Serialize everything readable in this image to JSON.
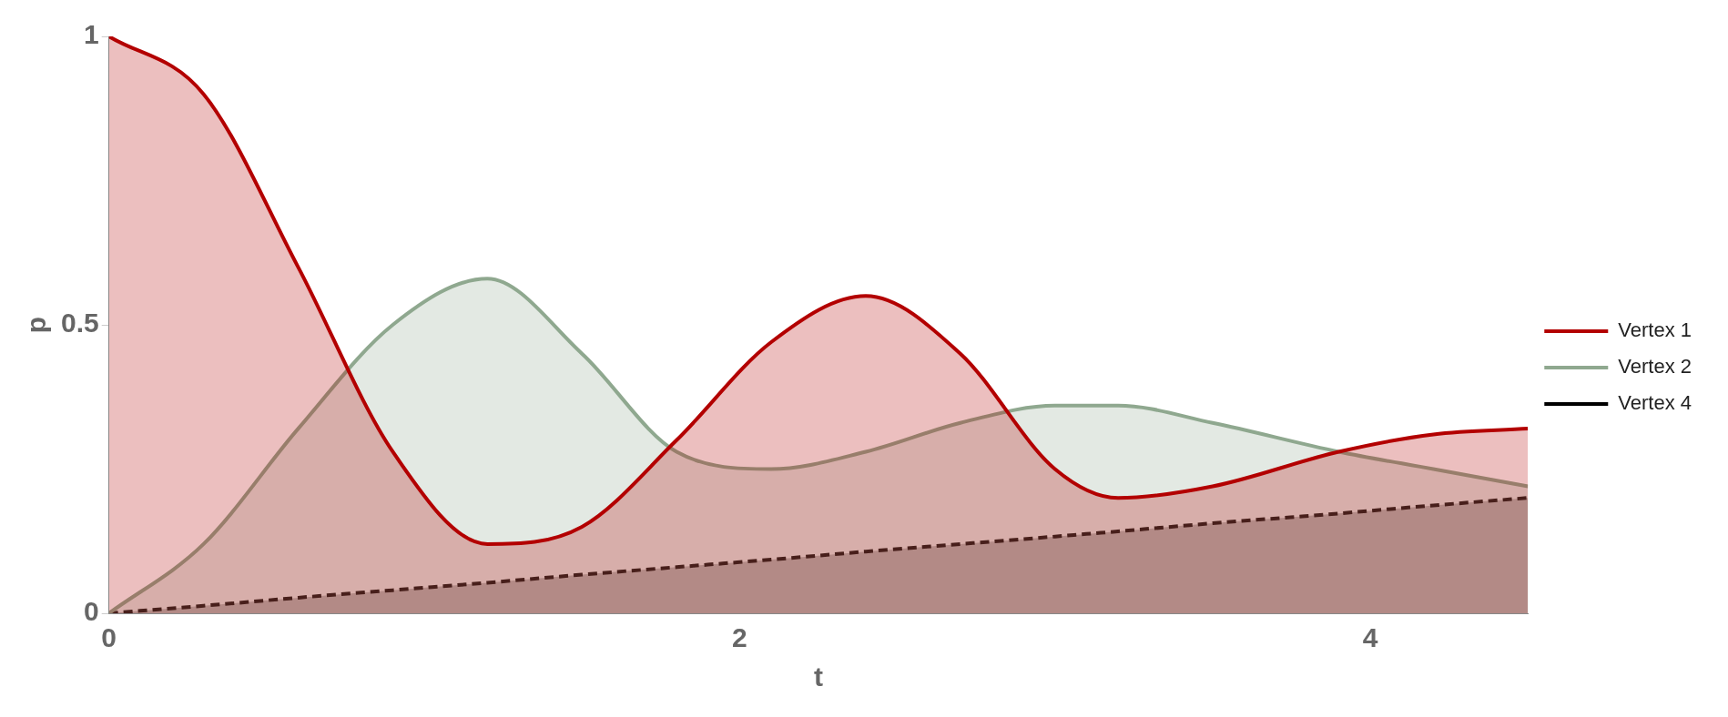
{
  "chart_data": {
    "type": "area",
    "xlabel": "t",
    "ylabel": "p",
    "xlim": [
      0,
      4.5
    ],
    "xticks": [
      0,
      2,
      4
    ],
    "ylim": [
      0,
      1
    ],
    "yticks": [
      0,
      0.5,
      1
    ],
    "legend": "right",
    "grid": false,
    "x": [
      0,
      0.3,
      0.6,
      0.9,
      1.2,
      1.5,
      1.8,
      2.1,
      2.4,
      2.7,
      3.0,
      3.2,
      3.5,
      3.9,
      4.2,
      4.5
    ],
    "series": [
      {
        "name": "Vertex 1",
        "color": "#b30000",
        "line_style": "solid",
        "values": [
          1.0,
          0.9,
          0.6,
          0.28,
          0.12,
          0.15,
          0.3,
          0.47,
          0.55,
          0.45,
          0.25,
          0.2,
          0.22,
          0.28,
          0.31,
          0.32
        ]
      },
      {
        "name": "Vertex 2",
        "color": "#8fa88f",
        "line_style": "solid",
        "values": [
          0.0,
          0.12,
          0.32,
          0.5,
          0.58,
          0.45,
          0.28,
          0.25,
          0.28,
          0.33,
          0.36,
          0.36,
          0.33,
          0.28,
          0.25,
          0.22
        ]
      },
      {
        "name": "Vertex 4",
        "color": "#000000",
        "line_style": "dashed",
        "values": [
          0.0,
          0.013,
          0.027,
          0.04,
          0.053,
          0.067,
          0.08,
          0.093,
          0.107,
          0.12,
          0.133,
          0.142,
          0.156,
          0.173,
          0.187,
          0.2
        ]
      }
    ]
  }
}
